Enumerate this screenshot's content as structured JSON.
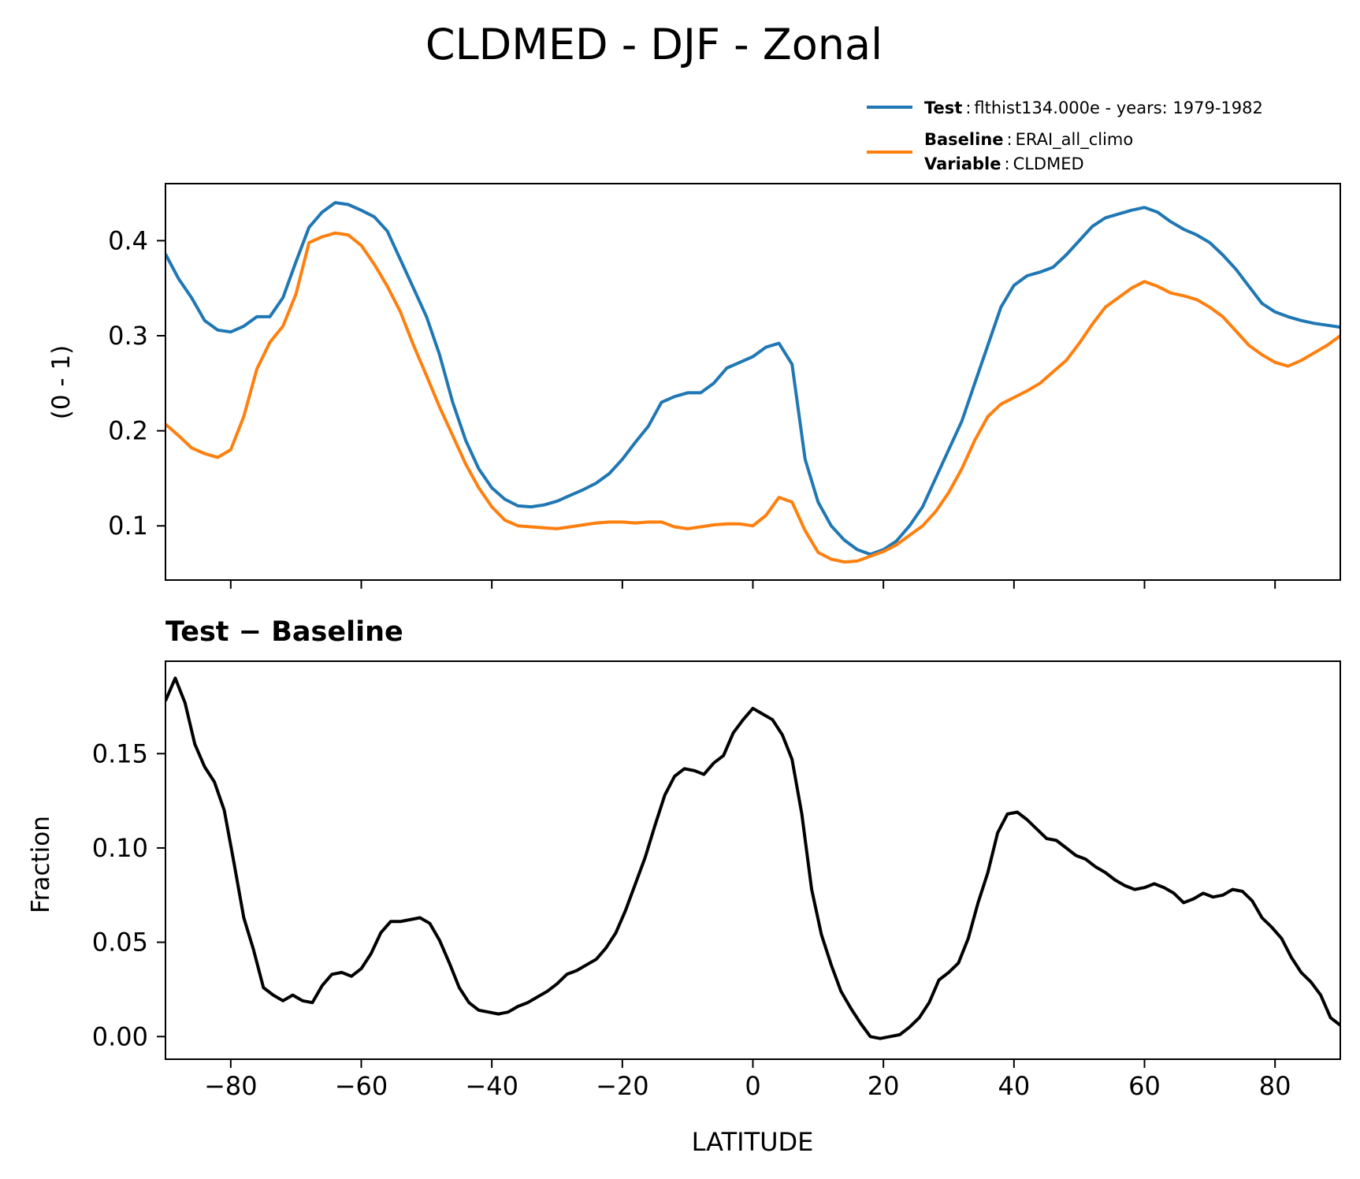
{
  "title": "CLDMED - DJF - Zonal",
  "legend": {
    "entries": [
      {
        "key": "Test",
        "sep": ":",
        "value": "flthist134.000e - years: 1979-1982",
        "color": "#1f77b4"
      },
      {
        "key": "Baseline",
        "sep": ":",
        "value": "ERAI_all_climo",
        "color": "#ff7f0e"
      },
      {
        "key": "Variable",
        "sep": ":",
        "value": "CLDMED"
      }
    ]
  },
  "chart_data": [
    {
      "type": "line",
      "ylabel": "(0 - 1)",
      "xlim": [
        -90,
        90
      ],
      "ylim": [
        0.043,
        0.46
      ],
      "yticks": [
        0.1,
        0.2,
        0.3,
        0.4
      ],
      "ytick_labels": [
        "0.1",
        "0.2",
        "0.3",
        "0.4"
      ],
      "xticks": [
        -80,
        -60,
        -40,
        -20,
        0,
        20,
        40,
        60,
        80
      ],
      "series": [
        {
          "name": "Test",
          "color": "#1f77b4",
          "x": [
            -90,
            -88,
            -86,
            -84,
            -82,
            -80,
            -78,
            -76,
            -74,
            -72,
            -70,
            -68,
            -66,
            -64,
            -62,
            -60,
            -58,
            -56,
            -54,
            -52,
            -50,
            -48,
            -46,
            -44,
            -42,
            -40,
            -38,
            -36,
            -34,
            -32,
            -30,
            -28,
            -26,
            -24,
            -22,
            -20,
            -18,
            -16,
            -14,
            -12,
            -10,
            -8,
            -6,
            -4,
            -2,
            0,
            2,
            4,
            6,
            8,
            10,
            12,
            14,
            16,
            18,
            20,
            22,
            24,
            26,
            28,
            30,
            32,
            34,
            36,
            38,
            40,
            42,
            44,
            46,
            48,
            50,
            52,
            54,
            56,
            58,
            60,
            62,
            64,
            66,
            68,
            70,
            72,
            74,
            76,
            78,
            80,
            82,
            84,
            86,
            88,
            90
          ],
          "y": [
            0.386,
            0.36,
            0.34,
            0.316,
            0.306,
            0.304,
            0.31,
            0.32,
            0.32,
            0.34,
            0.378,
            0.414,
            0.43,
            0.44,
            0.438,
            0.432,
            0.425,
            0.41,
            0.38,
            0.35,
            0.32,
            0.28,
            0.23,
            0.19,
            0.16,
            0.14,
            0.128,
            0.121,
            0.12,
            0.122,
            0.126,
            0.132,
            0.138,
            0.145,
            0.155,
            0.17,
            0.188,
            0.205,
            0.23,
            0.236,
            0.24,
            0.24,
            0.25,
            0.266,
            0.272,
            0.278,
            0.288,
            0.292,
            0.27,
            0.17,
            0.125,
            0.1,
            0.085,
            0.075,
            0.07,
            0.075,
            0.084,
            0.1,
            0.12,
            0.15,
            0.18,
            0.21,
            0.25,
            0.29,
            0.33,
            0.353,
            0.363,
            0.367,
            0.372,
            0.385,
            0.4,
            0.415,
            0.424,
            0.428,
            0.432,
            0.435,
            0.43,
            0.42,
            0.412,
            0.406,
            0.398,
            0.385,
            0.37,
            0.352,
            0.334,
            0.325,
            0.32,
            0.316,
            0.313,
            0.311,
            0.309
          ]
        },
        {
          "name": "Baseline",
          "color": "#ff7f0e",
          "x": [
            -90,
            -88,
            -86,
            -84,
            -82,
            -80,
            -78,
            -76,
            -74,
            -72,
            -70,
            -68,
            -66,
            -64,
            -62,
            -60,
            -58,
            -56,
            -54,
            -52,
            -50,
            -48,
            -46,
            -44,
            -42,
            -40,
            -38,
            -36,
            -34,
            -32,
            -30,
            -28,
            -26,
            -24,
            -22,
            -20,
            -18,
            -16,
            -14,
            -12,
            -10,
            -8,
            -6,
            -4,
            -2,
            0,
            2,
            4,
            6,
            8,
            10,
            12,
            14,
            16,
            18,
            20,
            22,
            24,
            26,
            28,
            30,
            32,
            34,
            36,
            38,
            40,
            42,
            44,
            46,
            48,
            50,
            52,
            54,
            56,
            58,
            60,
            62,
            64,
            66,
            68,
            70,
            72,
            74,
            76,
            78,
            80,
            82,
            84,
            86,
            88,
            90
          ],
          "y": [
            0.207,
            0.195,
            0.182,
            0.176,
            0.172,
            0.18,
            0.215,
            0.265,
            0.293,
            0.31,
            0.344,
            0.398,
            0.404,
            0.408,
            0.406,
            0.395,
            0.375,
            0.352,
            0.325,
            0.29,
            0.258,
            0.225,
            0.195,
            0.165,
            0.14,
            0.12,
            0.106,
            0.1,
            0.099,
            0.098,
            0.097,
            0.099,
            0.101,
            0.103,
            0.104,
            0.104,
            0.103,
            0.104,
            0.104,
            0.099,
            0.097,
            0.099,
            0.101,
            0.102,
            0.102,
            0.1,
            0.111,
            0.13,
            0.125,
            0.095,
            0.072,
            0.065,
            0.062,
            0.063,
            0.068,
            0.073,
            0.08,
            0.09,
            0.1,
            0.115,
            0.135,
            0.16,
            0.19,
            0.215,
            0.228,
            0.235,
            0.242,
            0.25,
            0.262,
            0.274,
            0.292,
            0.312,
            0.33,
            0.34,
            0.35,
            0.357,
            0.352,
            0.345,
            0.342,
            0.338,
            0.33,
            0.32,
            0.305,
            0.29,
            0.28,
            0.272,
            0.268,
            0.274,
            0.282,
            0.29,
            0.3
          ]
        }
      ]
    },
    {
      "type": "line",
      "title": "Test − Baseline",
      "ylabel": "Fraction",
      "xlabel": "LATITUDE",
      "xlim": [
        -90,
        90
      ],
      "ylim": [
        -0.012,
        0.199
      ],
      "yticks": [
        0,
        0.05,
        0.1,
        0.15
      ],
      "ytick_labels": [
        "0.00",
        "0.05",
        "0.10",
        "0.15"
      ],
      "xticks": [
        -80,
        -60,
        -40,
        -20,
        0,
        20,
        40,
        60,
        80
      ],
      "xtick_labels": [
        "−80",
        "−60",
        "−40",
        "−20",
        "0",
        "20",
        "40",
        "60",
        "80"
      ],
      "series": [
        {
          "name": "Test − Baseline",
          "color": "#000000",
          "x": [
            -90,
            -88.5,
            -87,
            -85.5,
            -84,
            -82.5,
            -81,
            -79.5,
            -78,
            -76.5,
            -75,
            -73.5,
            -72,
            -70.5,
            -69,
            -67.5,
            -66,
            -64.5,
            -63,
            -61.5,
            -60,
            -58.5,
            -57,
            -55.5,
            -54,
            -52.5,
            -51,
            -49.5,
            -48,
            -46.5,
            -45,
            -43.5,
            -42,
            -40.5,
            -39,
            -37.5,
            -36,
            -34.5,
            -33,
            -31.5,
            -30,
            -28.5,
            -27,
            -25.5,
            -24,
            -22.5,
            -21,
            -19.5,
            -18,
            -16.5,
            -15,
            -13.5,
            -12,
            -10.5,
            -9,
            -7.5,
            -6,
            -4.5,
            -3,
            -1.5,
            0,
            1.5,
            3,
            4.5,
            6,
            7.5,
            9,
            10.5,
            12,
            13.5,
            15,
            16.5,
            18,
            19.5,
            21,
            22.5,
            24,
            25.5,
            27,
            28.5,
            30,
            31.5,
            33,
            34.5,
            36,
            37.5,
            39,
            40.5,
            42,
            43.5,
            45,
            46.5,
            48,
            49.5,
            51,
            52.5,
            54,
            55.5,
            57,
            58.5,
            60,
            61.5,
            63,
            64.5,
            66,
            67.5,
            69,
            70.5,
            72,
            73.5,
            75,
            76.5,
            78,
            79.5,
            81,
            82.5,
            84,
            85.5,
            87,
            88.5,
            90
          ],
          "y": [
            0.178,
            0.19,
            0.177,
            0.155,
            0.143,
            0.135,
            0.12,
            0.092,
            0.063,
            0.046,
            0.026,
            0.022,
            0.019,
            0.022,
            0.019,
            0.018,
            0.027,
            0.033,
            0.034,
            0.032,
            0.036,
            0.044,
            0.055,
            0.061,
            0.061,
            0.062,
            0.063,
            0.06,
            0.051,
            0.039,
            0.026,
            0.018,
            0.014,
            0.013,
            0.012,
            0.013,
            0.016,
            0.018,
            0.021,
            0.024,
            0.028,
            0.033,
            0.035,
            0.038,
            0.041,
            0.047,
            0.055,
            0.067,
            0.081,
            0.095,
            0.112,
            0.128,
            0.138,
            0.142,
            0.141,
            0.139,
            0.145,
            0.149,
            0.161,
            0.168,
            0.174,
            0.171,
            0.168,
            0.16,
            0.147,
            0.118,
            0.078,
            0.054,
            0.038,
            0.024,
            0.015,
            0.007,
            0.0,
            -0.001,
            0.0,
            0.001,
            0.005,
            0.01,
            0.018,
            0.03,
            0.034,
            0.039,
            0.052,
            0.071,
            0.087,
            0.108,
            0.118,
            0.119,
            0.115,
            0.11,
            0.105,
            0.104,
            0.1,
            0.096,
            0.094,
            0.09,
            0.087,
            0.083,
            0.08,
            0.078,
            0.079,
            0.081,
            0.079,
            0.076,
            0.071,
            0.073,
            0.076,
            0.074,
            0.075,
            0.078,
            0.077,
            0.072,
            0.063,
            0.058,
            0.052,
            0.042,
            0.034,
            0.029,
            0.022,
            0.01,
            0.006
          ]
        }
      ]
    }
  ]
}
